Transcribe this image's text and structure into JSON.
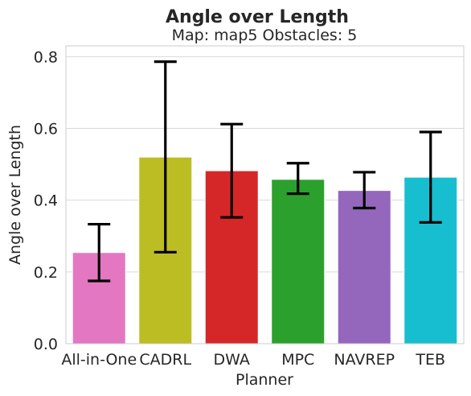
{
  "chart_data": {
    "type": "bar",
    "title": "Angle over Length",
    "subtitle": "Map: map5 Obstacles: 5",
    "xlabel": "Planner",
    "ylabel": "Angle over Length",
    "categories": [
      "All-in-One",
      "CADRL",
      "DWA",
      "MPC",
      "NAVREP",
      "TEB"
    ],
    "values": [
      0.254,
      0.52,
      0.482,
      0.458,
      0.427,
      0.464
    ],
    "error_low": [
      0.175,
      0.255,
      0.352,
      0.418,
      0.378,
      0.338
    ],
    "error_high": [
      0.333,
      0.786,
      0.612,
      0.503,
      0.478,
      0.59
    ],
    "colors": [
      "#e377c2",
      "#bcbd22",
      "#d62728",
      "#2ca02c",
      "#9467bd",
      "#17becf"
    ],
    "ylim": [
      0,
      0.83
    ],
    "yticks": [
      "0.0",
      "0.2",
      "0.4",
      "0.6",
      "0.8"
    ],
    "grid": "horizontal",
    "legend": "none"
  }
}
